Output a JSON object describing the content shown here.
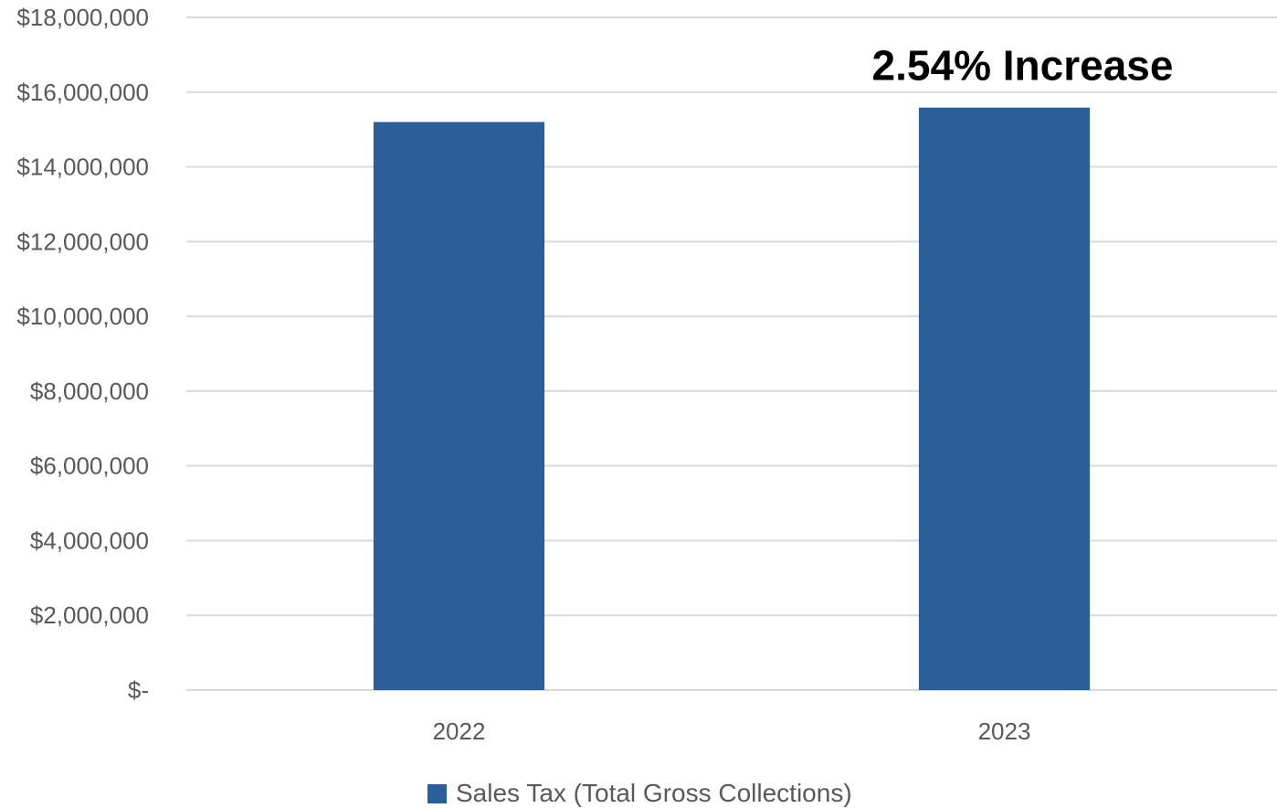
{
  "chart_data": {
    "type": "bar",
    "categories": [
      "2022",
      "2023"
    ],
    "series": [
      {
        "name": "Sales Tax (Total Gross Collections)",
        "values": [
          15200000,
          15586000
        ],
        "color": "#2C5F97"
      }
    ],
    "ylim": [
      0,
      18000000
    ],
    "y_ticks": [
      {
        "value": 0,
        "label": "$-"
      },
      {
        "value": 2000000,
        "label": "$2,000,000"
      },
      {
        "value": 4000000,
        "label": "$4,000,000"
      },
      {
        "value": 6000000,
        "label": "$6,000,000"
      },
      {
        "value": 8000000,
        "label": "$8,000,000"
      },
      {
        "value": 10000000,
        "label": "$10,000,000"
      },
      {
        "value": 12000000,
        "label": "$12,000,000"
      },
      {
        "value": 14000000,
        "label": "$14,000,000"
      },
      {
        "value": 16000000,
        "label": "$16,000,000"
      },
      {
        "value": 18000000,
        "label": "$18,000,000"
      }
    ],
    "annotations": [
      {
        "text": "2.54% Increase",
        "category": "2023"
      }
    ],
    "grid": true,
    "legend_position": "bottom",
    "gridline_color": "#D9D9D9"
  }
}
